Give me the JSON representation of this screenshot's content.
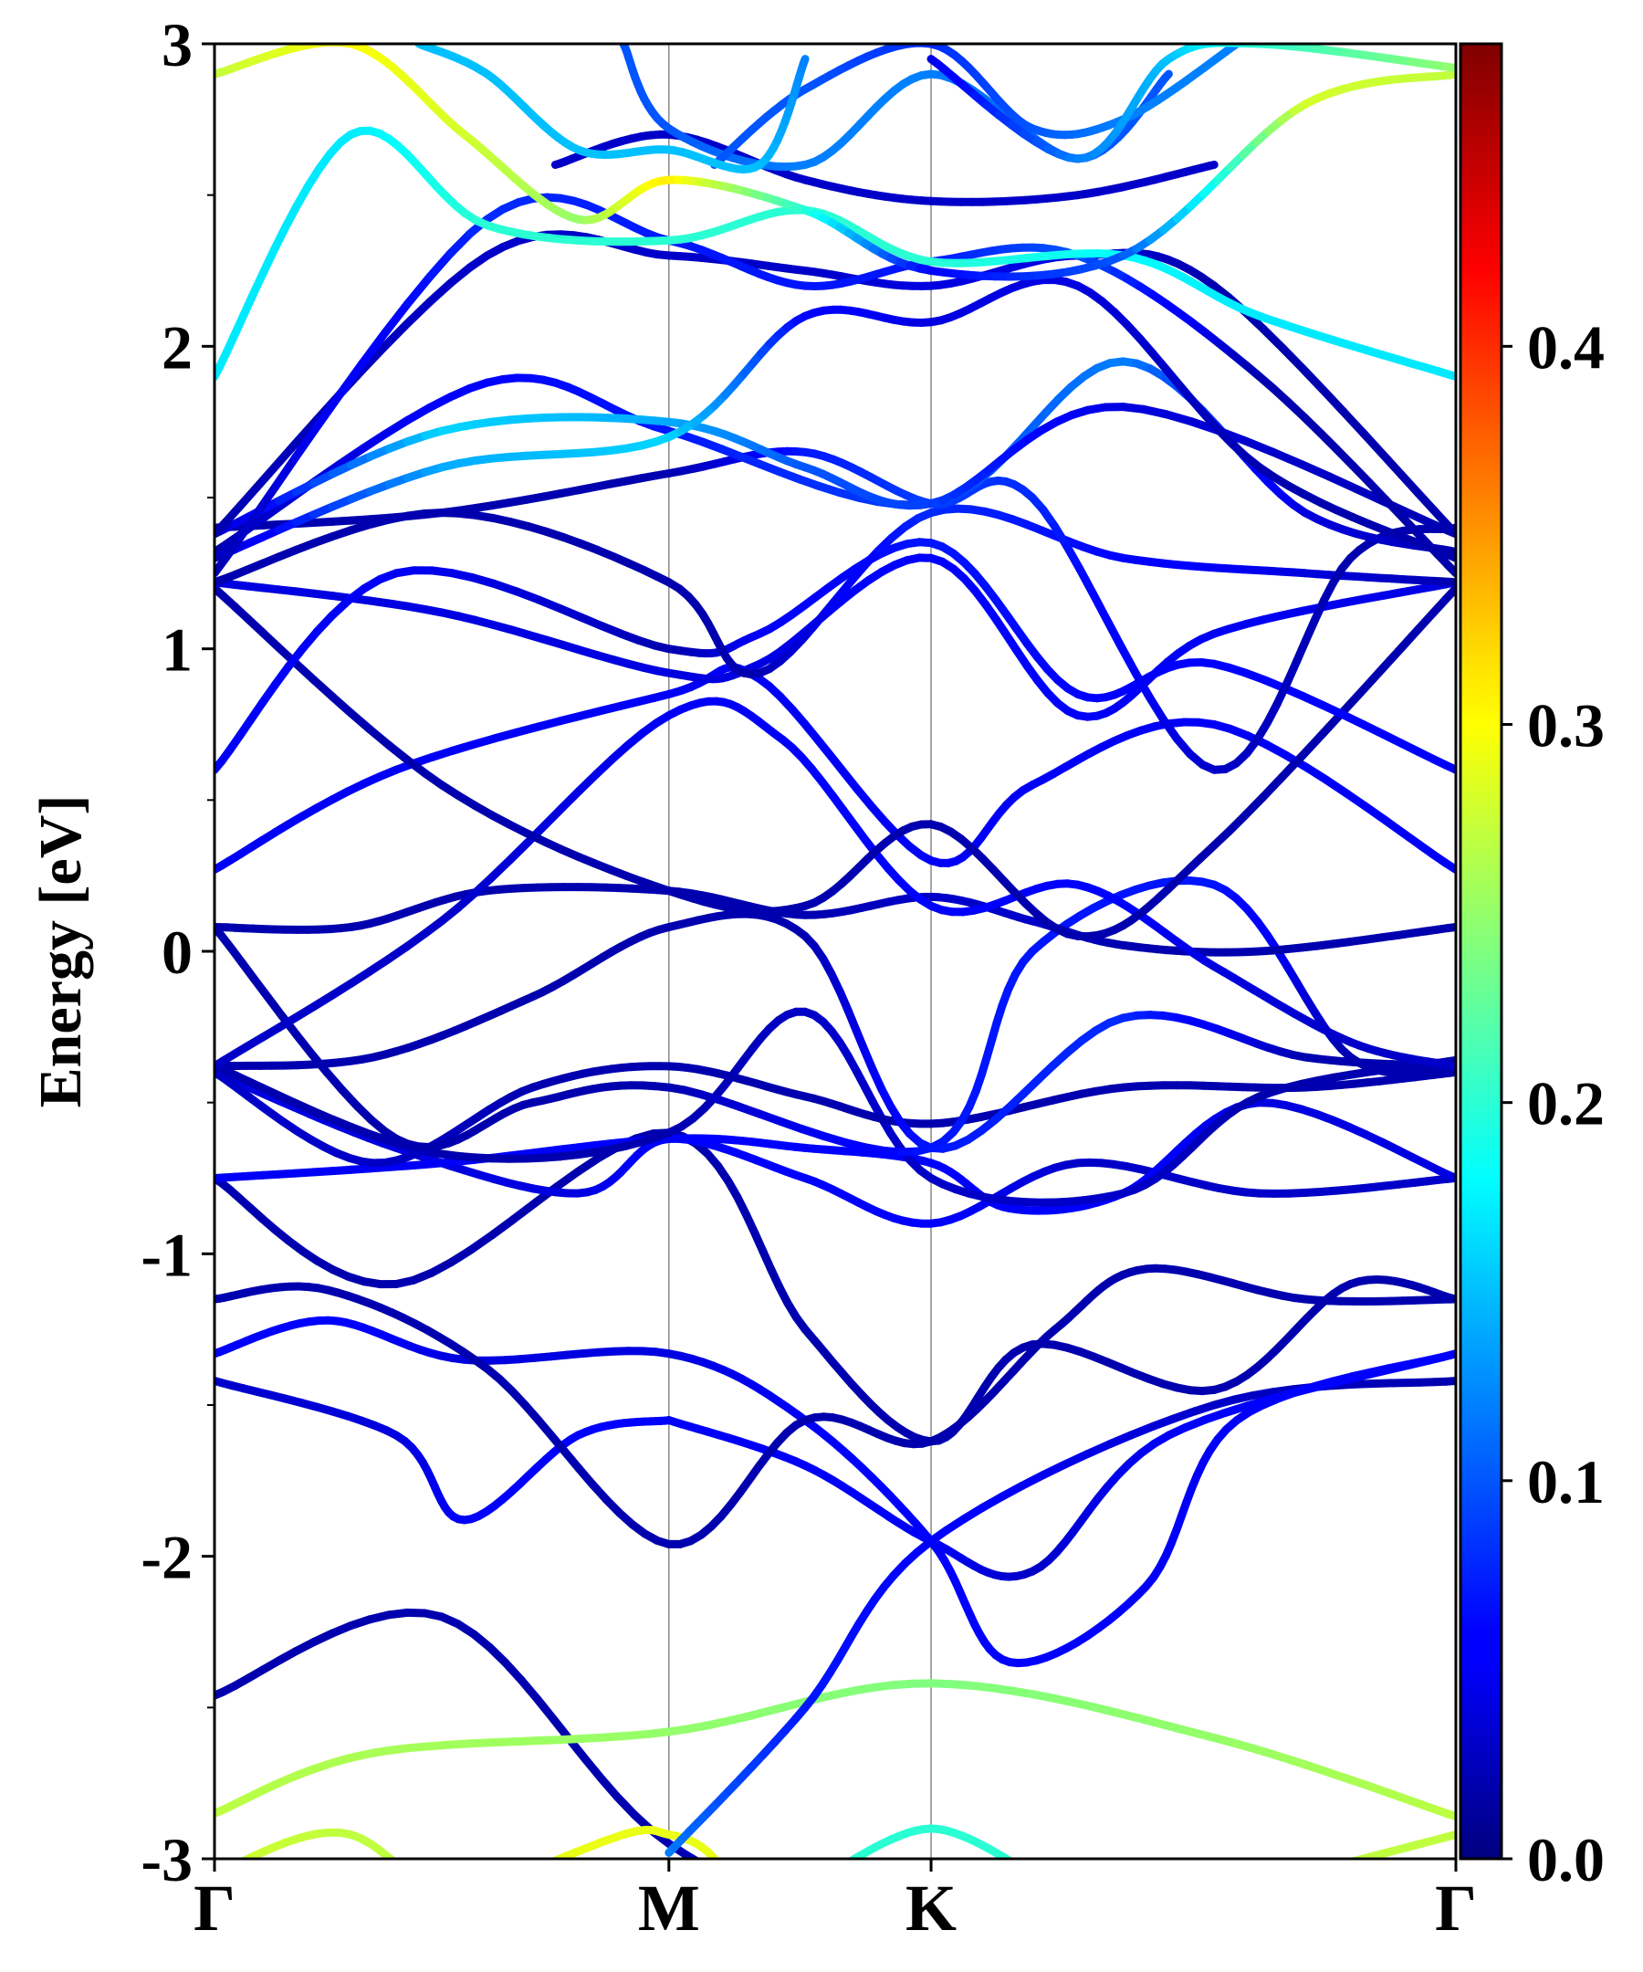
{
  "chart_data": {
    "type": "line",
    "ylabel": "Energy [eV]",
    "ylim": [
      -3,
      3
    ],
    "yticks": [
      "3",
      "2",
      "1",
      "0",
      "-1",
      "-2",
      "-3"
    ],
    "ytick_values": [
      3,
      2,
      1,
      0,
      -1,
      -2,
      -3
    ],
    "xticks": [
      "Γ",
      "M",
      "K",
      "Γ"
    ],
    "x_kpath": [
      0.0,
      1.0,
      1.577,
      2.732
    ],
    "colorbar": {
      "colormap": "jet",
      "range": [
        0.0,
        0.48
      ],
      "ticks": [
        "0.0",
        "0.1",
        "0.2",
        "0.3",
        "0.4"
      ],
      "tick_values": [
        0.0,
        0.1,
        0.2,
        0.3,
        0.4
      ]
    },
    "grid": false,
    "series": [
      {
        "x": [
          0,
          0.5,
          1.0,
          1.577,
          2.0,
          2.732
        ],
        "y": [
          -2.46,
          -2.2,
          -2.95,
          -3.3,
          -3.3,
          -3.3
        ],
        "w": [
          0.02,
          0.02,
          0.02,
          0.04,
          0.04,
          0.04
        ]
      },
      {
        "x": [
          0,
          0.35,
          1.0,
          1.577,
          2.2,
          2.732
        ],
        "y": [
          -2.85,
          -2.65,
          -2.58,
          -2.42,
          -2.6,
          -2.86
        ],
        "w": [
          0.27,
          0.26,
          0.25,
          0.24,
          0.25,
          0.27
        ]
      },
      {
        "x": [
          0,
          0.3,
          0.6,
          0.8,
          1.0
        ],
        "y": [
          -3.05,
          -2.92,
          -3.3,
          -3.3,
          -3.3
        ],
        "w": [
          0.28,
          0.27,
          0.27,
          0.27,
          0.27
        ]
      },
      {
        "x": [
          0.6,
          0.9,
          1.0,
          1.08,
          1.15
        ],
        "y": [
          -3.1,
          -2.92,
          -2.92,
          -2.97,
          -3.1
        ],
        "w": [
          0.29,
          0.29,
          0.29,
          0.29,
          0.29
        ]
      },
      {
        "x": [
          1.35,
          1.577,
          1.8
        ],
        "y": [
          -3.05,
          -2.9,
          -3.05
        ],
        "w": [
          0.2,
          0.2,
          0.2
        ]
      },
      {
        "x": [
          2.4,
          2.732
        ],
        "y": [
          -3.05,
          -2.92
        ],
        "w": [
          0.27,
          0.27
        ]
      },
      {
        "x": [
          1.0,
          1.3,
          1.577,
          2.2,
          2.732
        ],
        "y": [
          -2.98,
          -2.5,
          -1.95,
          -1.5,
          -1.42
        ],
        "w": [
          0.12,
          0.07,
          0.06,
          0.03,
          0.02
        ]
      },
      {
        "x": [
          0,
          0.4,
          0.55,
          0.8,
          1.0
        ],
        "y": [
          -1.42,
          -1.6,
          -1.88,
          -1.6,
          -1.55
        ],
        "w": [
          0.03,
          0.04,
          0.05,
          0.06,
          0.06
        ]
      },
      {
        "x": [
          1.0,
          1.3,
          1.577,
          1.8,
          2.1,
          2.732
        ],
        "y": [
          -1.55,
          -1.7,
          -1.95,
          -2.05,
          -1.6,
          -1.33
        ],
        "w": [
          0.05,
          0.05,
          0.05,
          0.03,
          0.05,
          0.06
        ]
      },
      {
        "x": [
          0,
          0.25,
          0.55,
          1.0,
          1.3,
          1.577,
          1.75,
          2.05,
          2.25,
          2.732
        ],
        "y": [
          -1.33,
          -1.22,
          -1.35,
          -1.33,
          -1.55,
          -1.95,
          -2.35,
          -2.1,
          -1.55,
          -1.33
        ],
        "w": [
          0.05,
          0.06,
          0.04,
          0.04,
          0.05,
          0.06,
          0.06,
          0.05,
          0.05,
          0.06
        ]
      },
      {
        "x": [
          0,
          0.25,
          0.6,
          1.0,
          1.3,
          1.577,
          1.85,
          2.05,
          2.4,
          2.732
        ],
        "y": [
          -1.15,
          -1.12,
          -1.38,
          -1.96,
          -1.55,
          -1.62,
          -1.25,
          -1.05,
          -1.15,
          -1.15
        ],
        "w": [
          0.02,
          0.02,
          0.02,
          0.02,
          0.02,
          0.02,
          0.02,
          0.02,
          0.02,
          0.02
        ]
      },
      {
        "x": [
          0,
          0.4,
          1.0,
          1.3,
          1.577,
          1.8,
          2.2,
          2.5,
          2.732
        ],
        "y": [
          -0.75,
          -1.1,
          -0.6,
          -1.25,
          -1.62,
          -1.3,
          -1.45,
          -1.1,
          -1.15
        ],
        "w": [
          0.02,
          0.02,
          0.02,
          0.02,
          0.02,
          0.02,
          0.02,
          0.02,
          0.02
        ]
      },
      {
        "x": [
          0,
          0.4,
          0.8,
          1.0,
          1.3,
          1.577,
          1.9,
          2.3,
          2.732
        ],
        "y": [
          -0.4,
          -0.65,
          -0.8,
          -0.62,
          -0.75,
          -0.9,
          -0.7,
          -0.8,
          -0.75
        ],
        "w": [
          0.04,
          0.04,
          0.04,
          0.06,
          0.06,
          0.06,
          0.03,
          0.03,
          0.03
        ]
      },
      {
        "x": [
          0,
          0.5,
          1.0,
          1.3,
          1.577,
          1.75,
          2.0,
          2.3,
          2.732
        ],
        "y": [
          -0.75,
          -0.7,
          -0.62,
          -0.65,
          -0.7,
          -0.85,
          -0.8,
          -0.5,
          -0.75
        ],
        "w": [
          0.05,
          0.05,
          0.06,
          0.06,
          0.06,
          0.06,
          0.06,
          0.04,
          0.04
        ]
      },
      {
        "x": [
          0,
          0.5,
          1.0,
          1.3,
          1.577,
          2.0,
          2.3,
          2.732
        ],
        "y": [
          -0.38,
          -0.67,
          -0.6,
          -0.2,
          -0.75,
          -0.8,
          -0.48,
          -0.36
        ],
        "w": [
          0.02,
          0.02,
          0.02,
          0.03,
          0.03,
          0.03,
          0.02,
          0.02
        ]
      },
      {
        "x": [
          0,
          0.35,
          0.7,
          1.0,
          1.3,
          1.577,
          2.0,
          2.4,
          2.732
        ],
        "y": [
          -0.4,
          -0.7,
          -0.45,
          -0.38,
          -0.48,
          -0.57,
          -0.45,
          -0.45,
          -0.4
        ],
        "w": [
          0.03,
          0.03,
          0.02,
          0.02,
          0.02,
          0.02,
          0.02,
          0.02,
          0.02
        ]
      },
      {
        "x": [
          0,
          0.4,
          0.7,
          1.0,
          1.577,
          1.8,
          2.2,
          2.5,
          2.732
        ],
        "y": [
          0.08,
          -0.62,
          -0.5,
          -0.45,
          -0.65,
          0.0,
          0.22,
          -0.35,
          -0.38
        ],
        "w": [
          0.02,
          0.02,
          0.02,
          0.02,
          0.07,
          0.07,
          0.07,
          0.02,
          0.02
        ]
      },
      {
        "x": [
          0,
          0.35,
          0.7,
          1.0,
          1.3,
          1.577,
          2.0,
          2.4,
          2.732
        ],
        "y": [
          -0.38,
          -0.35,
          -0.15,
          0.08,
          0.05,
          -0.65,
          -0.22,
          -0.35,
          -0.38
        ],
        "w": [
          0.02,
          0.02,
          0.02,
          0.02,
          0.02,
          0.07,
          0.08,
          0.02,
          0.02
        ]
      },
      {
        "x": [
          0,
          0.3,
          0.6,
          1.0,
          1.3,
          1.577,
          1.8,
          2.0,
          2.3,
          2.732
        ],
        "y": [
          0.08,
          0.08,
          0.2,
          0.2,
          0.12,
          0.18,
          0.1,
          0.02,
          0.0,
          0.08
        ],
        "w": [
          0.02,
          0.02,
          0.02,
          0.02,
          0.02,
          0.03,
          0.03,
          0.02,
          0.02,
          0.02
        ]
      },
      {
        "x": [
          0,
          0.5,
          1.0,
          1.25,
          1.577,
          1.9,
          2.2,
          2.5,
          2.732
        ],
        "y": [
          -0.38,
          0.1,
          0.78,
          0.7,
          0.15,
          0.22,
          -0.05,
          -0.3,
          -0.38
        ],
        "w": [
          0.03,
          0.03,
          0.05,
          0.05,
          0.06,
          0.06,
          0.04,
          0.03,
          0.03
        ]
      },
      {
        "x": [
          0,
          0.4,
          1.0,
          1.2,
          1.577,
          1.8,
          2.2,
          2.732
        ],
        "y": [
          0.27,
          0.6,
          0.85,
          0.9,
          0.3,
          0.55,
          0.75,
          0.27
        ],
        "w": [
          0.05,
          0.05,
          0.05,
          0.05,
          0.05,
          0.05,
          0.05,
          0.05
        ]
      },
      {
        "x": [
          0,
          0.5,
          1.0,
          1.3,
          1.577,
          1.9,
          2.2,
          2.732
        ],
        "y": [
          1.2,
          0.55,
          0.2,
          0.15,
          0.42,
          0.05,
          0.35,
          1.2
        ],
        "w": [
          0.02,
          0.02,
          0.02,
          0.02,
          0.02,
          0.02,
          0.02,
          0.02
        ]
      },
      {
        "x": [
          0,
          0.5,
          1.0,
          1.2,
          1.577,
          1.9,
          2.2,
          2.732
        ],
        "y": [
          1.22,
          1.12,
          0.92,
          0.95,
          1.3,
          0.78,
          1.05,
          1.22
        ],
        "w": [
          0.04,
          0.04,
          0.04,
          0.04,
          0.06,
          0.05,
          0.05,
          0.04
        ]
      },
      {
        "x": [
          0,
          0.4,
          1.0,
          1.2,
          1.577,
          1.9,
          2.2,
          2.732
        ],
        "y": [
          0.6,
          1.25,
          1.0,
          1.05,
          1.35,
          0.85,
          0.95,
          0.6
        ],
        "w": [
          0.05,
          0.05,
          0.02,
          0.05,
          0.07,
          0.06,
          0.06,
          0.05
        ]
      },
      {
        "x": [
          0,
          0.5,
          1.0,
          1.2,
          1.577,
          2.0,
          2.4,
          2.732
        ],
        "y": [
          1.22,
          1.45,
          1.22,
          0.92,
          1.45,
          1.3,
          1.25,
          1.22
        ],
        "w": [
          0.02,
          0.02,
          0.02,
          0.02,
          0.08,
          0.06,
          0.04,
          0.02
        ]
      },
      {
        "x": [
          0,
          0.5,
          1.0,
          1.3,
          1.577,
          1.8,
          2.2,
          2.5,
          2.732
        ],
        "y": [
          1.4,
          1.45,
          1.58,
          1.65,
          1.48,
          1.5,
          0.6,
          1.3,
          1.4
        ],
        "w": [
          0.02,
          0.02,
          0.02,
          0.07,
          0.09,
          0.08,
          0.03,
          0.02,
          0.02
        ]
      },
      {
        "x": [
          0,
          0.6,
          1.0,
          1.577,
          2.0,
          2.4,
          2.732
        ],
        "y": [
          1.32,
          1.88,
          1.72,
          1.48,
          1.95,
          1.45,
          1.32
        ],
        "w": [
          0.02,
          0.06,
          0.07,
          0.09,
          0.12,
          0.04,
          0.02
        ]
      },
      {
        "x": [
          0,
          0.5,
          1.0,
          1.3,
          1.577,
          2.0,
          2.732
        ],
        "y": [
          1.38,
          1.72,
          1.75,
          1.6,
          1.48,
          1.8,
          1.38
        ],
        "w": [
          0.02,
          0.16,
          0.14,
          0.1,
          0.09,
          0.04,
          0.02
        ]
      },
      {
        "x": [
          0,
          0.5,
          1.0,
          1.3,
          1.577,
          1.9,
          2.3,
          2.732
        ],
        "y": [
          1.3,
          1.6,
          1.7,
          2.1,
          2.08,
          2.2,
          1.6,
          1.3
        ],
        "w": [
          0.02,
          0.14,
          0.16,
          0.06,
          0.04,
          0.04,
          0.02,
          0.02
        ]
      },
      {
        "x": [
          0,
          0.6,
          1.0,
          1.3,
          1.577,
          1.9,
          2.2,
          2.732
        ],
        "y": [
          1.38,
          2.3,
          2.3,
          2.25,
          2.2,
          2.3,
          2.2,
          1.38
        ],
        "w": [
          0.02,
          0.03,
          0.03,
          0.03,
          0.04,
          0.04,
          0.02,
          0.02
        ]
      },
      {
        "x": [
          0,
          0.6,
          1.0,
          1.3,
          1.577,
          1.9,
          2.3,
          2.732
        ],
        "y": [
          1.25,
          2.42,
          2.35,
          2.2,
          2.28,
          2.3,
          1.9,
          1.25
        ],
        "w": [
          0.02,
          0.08,
          0.07,
          0.07,
          0.07,
          0.1,
          0.02,
          0.02
        ]
      },
      {
        "x": [
          0,
          0.3,
          0.6,
          1.0,
          1.3,
          1.577,
          2.0,
          2.3,
          2.732
        ],
        "y": [
          1.9,
          2.7,
          2.4,
          2.35,
          2.45,
          2.28,
          2.3,
          2.1,
          1.9
        ],
        "w": [
          0.17,
          0.17,
          0.2,
          0.2,
          0.2,
          0.2,
          0.18,
          0.17,
          0.17
        ]
      },
      {
        "x": [
          0,
          0.3,
          0.55,
          0.8,
          1.0,
          1.3,
          1.577,
          2.0,
          2.4,
          2.732
        ],
        "y": [
          2.9,
          3.0,
          2.7,
          2.42,
          2.55,
          2.45,
          2.25,
          2.3,
          2.8,
          2.9
        ],
        "w": [
          0.27,
          0.3,
          0.28,
          0.25,
          0.31,
          0.2,
          0.06,
          0.1,
          0.28,
          0.27
        ]
      },
      {
        "x": [
          0.75,
          1.0,
          1.3,
          1.577,
          1.9,
          2.2
        ],
        "y": [
          2.6,
          2.7,
          2.55,
          2.48,
          2.5,
          2.6
        ],
        "w": [
          0.03,
          0.03,
          0.03,
          0.03,
          0.03,
          0.03
        ]
      },
      {
        "x": [
          0.9,
          1.0,
          1.3,
          1.577,
          1.9,
          2.1
        ],
        "y": [
          3.0,
          2.72,
          2.6,
          2.9,
          2.62,
          2.9
        ],
        "w": [
          0.1,
          0.1,
          0.12,
          0.12,
          0.1,
          0.1
        ]
      },
      {
        "x": [
          1.1,
          1.3,
          1.577,
          1.8,
          2.0,
          2.25
        ],
        "y": [
          2.6,
          2.85,
          3.0,
          2.72,
          2.75,
          3.0
        ],
        "w": [
          0.1,
          0.1,
          0.08,
          0.1,
          0.12,
          0.12
        ]
      },
      {
        "x": [
          0.45,
          0.6,
          0.8,
          1.0,
          1.2,
          1.3
        ],
        "y": [
          3.0,
          2.9,
          2.65,
          2.65,
          2.6,
          2.95
        ],
        "w": [
          0.15,
          0.15,
          0.15,
          0.15,
          0.15,
          0.12
        ]
      },
      {
        "x": [
          1.577,
          1.9,
          2.1,
          2.3,
          2.732
        ],
        "y": [
          2.95,
          2.62,
          2.95,
          3.0,
          2.92
        ],
        "w": [
          0.04,
          0.12,
          0.15,
          0.2,
          0.25
        ]
      }
    ]
  }
}
